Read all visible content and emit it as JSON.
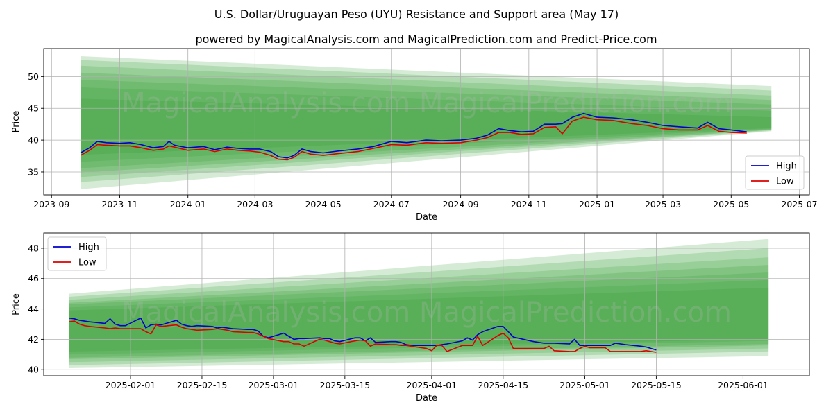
{
  "header": {
    "title": "U.S. Dollar/Uruguayan Peso (UYU) Resistance and Support area (May 17)",
    "subtitle": "powered by MagicalAnalysis.com and MagicalPrediction.com and Predict-Price.com"
  },
  "watermark": "MagicalAnalysis.com   MagicalPrediction.com",
  "colors": {
    "high": "#0000cc",
    "low": "#dd0000",
    "band": "#2e9a2e",
    "grid": "#b0b0b0"
  },
  "chart_data": [
    {
      "type": "line",
      "xlabel": "Date",
      "ylabel": "Price",
      "xlim": [
        "2023-08-25",
        "2025-07-10"
      ],
      "ylim": [
        31.4,
        54.4
      ],
      "x_ticks": [
        "2023-09",
        "2023-11",
        "2024-01",
        "2024-03",
        "2024-05",
        "2024-07",
        "2024-09",
        "2024-11",
        "2025-01",
        "2025-03",
        "2025-05",
        "2025-07"
      ],
      "x_tick_dates": [
        "2023-09-01",
        "2023-11-01",
        "2024-01-01",
        "2024-03-01",
        "2024-05-01",
        "2024-07-01",
        "2024-09-01",
        "2024-11-01",
        "2025-01-01",
        "2025-03-01",
        "2025-05-01",
        "2025-07-01"
      ],
      "y_ticks": [
        35,
        40,
        45,
        50
      ],
      "grid": true,
      "legend": "lower right",
      "series": [
        {
          "name": "High",
          "color": "#0000cc",
          "x": [
            "2023-09-27",
            "2023-10-05",
            "2023-10-12",
            "2023-10-20",
            "2023-11-01",
            "2023-11-10",
            "2023-11-20",
            "2023-12-01",
            "2023-12-10",
            "2023-12-15",
            "2023-12-20",
            "2024-01-01",
            "2024-01-15",
            "2024-01-25",
            "2024-02-05",
            "2024-02-15",
            "2024-02-25",
            "2024-03-05",
            "2024-03-15",
            "2024-03-22",
            "2024-03-30",
            "2024-04-05",
            "2024-04-12",
            "2024-04-20",
            "2024-05-01",
            "2024-05-15",
            "2024-06-01",
            "2024-06-15",
            "2024-07-01",
            "2024-07-15",
            "2024-08-01",
            "2024-08-15",
            "2024-09-01",
            "2024-09-15",
            "2024-09-25",
            "2024-10-05",
            "2024-10-15",
            "2024-10-25",
            "2024-11-05",
            "2024-11-15",
            "2024-11-25",
            "2024-12-01",
            "2024-12-10",
            "2024-12-20",
            "2025-01-01",
            "2025-01-15",
            "2025-02-01",
            "2025-02-15",
            "2025-03-01",
            "2025-03-15",
            "2025-04-01",
            "2025-04-10",
            "2025-04-20",
            "2025-05-01",
            "2025-05-15"
          ],
          "y": [
            38.0,
            38.8,
            39.8,
            39.6,
            39.5,
            39.6,
            39.3,
            38.8,
            39.0,
            39.8,
            39.2,
            38.8,
            39.0,
            38.5,
            38.9,
            38.7,
            38.6,
            38.6,
            38.2,
            37.4,
            37.2,
            37.6,
            38.6,
            38.2,
            38.0,
            38.3,
            38.6,
            39.0,
            39.8,
            39.6,
            40.0,
            39.9,
            40.0,
            40.3,
            40.8,
            41.8,
            41.5,
            41.3,
            41.4,
            42.5,
            42.5,
            42.6,
            43.6,
            44.2,
            43.6,
            43.5,
            43.2,
            42.8,
            42.3,
            42.1,
            41.9,
            42.8,
            41.8,
            41.6,
            41.3
          ]
        },
        {
          "name": "Low",
          "color": "#dd0000",
          "x": [
            "2023-09-27",
            "2023-10-05",
            "2023-10-12",
            "2023-10-20",
            "2023-11-01",
            "2023-11-10",
            "2023-11-20",
            "2023-12-01",
            "2023-12-10",
            "2023-12-15",
            "2023-12-20",
            "2024-01-01",
            "2024-01-15",
            "2024-01-25",
            "2024-02-05",
            "2024-02-15",
            "2024-02-25",
            "2024-03-05",
            "2024-03-15",
            "2024-03-22",
            "2024-03-30",
            "2024-04-05",
            "2024-04-12",
            "2024-04-20",
            "2024-05-01",
            "2024-05-15",
            "2024-06-01",
            "2024-06-15",
            "2024-07-01",
            "2024-07-15",
            "2024-08-01",
            "2024-08-15",
            "2024-09-01",
            "2024-09-15",
            "2024-09-25",
            "2024-10-05",
            "2024-10-15",
            "2024-10-25",
            "2024-11-05",
            "2024-11-15",
            "2024-11-25",
            "2024-12-01",
            "2024-12-10",
            "2024-12-20",
            "2025-01-01",
            "2025-01-15",
            "2025-02-01",
            "2025-02-15",
            "2025-03-01",
            "2025-03-15",
            "2025-04-01",
            "2025-04-10",
            "2025-04-20",
            "2025-05-01",
            "2025-05-15"
          ],
          "y": [
            37.6,
            38.4,
            39.3,
            39.2,
            39.1,
            39.1,
            38.8,
            38.4,
            38.6,
            39.1,
            38.9,
            38.4,
            38.6,
            38.2,
            38.6,
            38.4,
            38.3,
            38.1,
            37.6,
            37.0,
            36.9,
            37.3,
            38.2,
            37.8,
            37.6,
            37.9,
            38.2,
            38.7,
            39.3,
            39.2,
            39.6,
            39.5,
            39.6,
            40.0,
            40.4,
            41.2,
            41.2,
            40.9,
            41.0,
            42.0,
            42.1,
            41.0,
            43.0,
            43.6,
            43.2,
            43.1,
            42.6,
            42.3,
            41.8,
            41.6,
            41.6,
            42.3,
            41.4,
            41.2,
            41.1
          ]
        }
      ]
    },
    {
      "type": "line",
      "xlabel": "Date",
      "ylabel": "Price",
      "xlim": [
        "2025-01-15",
        "2025-06-14"
      ],
      "ylim": [
        39.6,
        49.0
      ],
      "x_ticks": [
        "2025-02-01",
        "2025-02-15",
        "2025-03-01",
        "2025-03-15",
        "2025-04-01",
        "2025-04-15",
        "2025-05-01",
        "2025-05-15",
        "2025-06-01"
      ],
      "y_ticks": [
        40,
        42,
        44,
        46,
        48
      ],
      "grid": true,
      "legend": "upper left",
      "series": [
        {
          "name": "High",
          "color": "#0000cc",
          "x": [
            "2025-01-20",
            "2025-01-21",
            "2025-01-22",
            "2025-01-23",
            "2025-01-24",
            "2025-01-27",
            "2025-01-28",
            "2025-01-29",
            "2025-01-30",
            "2025-01-31",
            "2025-02-03",
            "2025-02-04",
            "2025-02-05",
            "2025-02-06",
            "2025-02-07",
            "2025-02-10",
            "2025-02-11",
            "2025-02-12",
            "2025-02-13",
            "2025-02-14",
            "2025-02-17",
            "2025-02-18",
            "2025-02-19",
            "2025-02-20",
            "2025-02-21",
            "2025-02-24",
            "2025-02-25",
            "2025-02-26",
            "2025-02-27",
            "2025-02-28",
            "2025-03-03",
            "2025-03-04",
            "2025-03-05",
            "2025-03-06",
            "2025-03-07",
            "2025-03-10",
            "2025-03-11",
            "2025-03-12",
            "2025-03-13",
            "2025-03-14",
            "2025-03-17",
            "2025-03-18",
            "2025-03-19",
            "2025-03-20",
            "2025-03-21",
            "2025-03-24",
            "2025-03-25",
            "2025-03-26",
            "2025-03-27",
            "2025-03-28",
            "2025-03-31",
            "2025-04-01",
            "2025-04-02",
            "2025-04-03",
            "2025-04-04",
            "2025-04-07",
            "2025-04-08",
            "2025-04-09",
            "2025-04-10",
            "2025-04-11",
            "2025-04-14",
            "2025-04-15",
            "2025-04-16",
            "2025-04-17",
            "2025-04-21",
            "2025-04-22",
            "2025-04-23",
            "2025-04-24",
            "2025-04-25",
            "2025-04-28",
            "2025-04-29",
            "2025-04-30",
            "2025-05-01",
            "2025-05-02",
            "2025-05-05",
            "2025-05-06",
            "2025-05-07",
            "2025-05-08",
            "2025-05-09",
            "2025-05-12",
            "2025-05-13",
            "2025-05-14",
            "2025-05-15"
          ],
          "y": [
            43.4,
            43.35,
            43.25,
            43.2,
            43.15,
            43.05,
            43.35,
            43.0,
            42.9,
            42.9,
            43.4,
            42.75,
            42.95,
            43.0,
            42.95,
            43.25,
            43.0,
            42.9,
            42.85,
            42.9,
            42.85,
            42.75,
            42.8,
            42.75,
            42.7,
            42.65,
            42.65,
            42.55,
            42.2,
            42.1,
            42.4,
            42.2,
            42.0,
            42.05,
            42.05,
            42.1,
            42.05,
            42.05,
            41.9,
            41.85,
            42.1,
            42.1,
            41.9,
            42.1,
            41.8,
            41.85,
            41.85,
            41.8,
            41.65,
            41.6,
            41.6,
            41.6,
            41.6,
            41.65,
            41.7,
            41.9,
            42.1,
            41.95,
            42.3,
            42.5,
            42.85,
            42.85,
            42.5,
            42.15,
            41.85,
            41.8,
            41.75,
            41.75,
            41.75,
            41.7,
            42.0,
            41.6,
            41.6,
            41.6,
            41.6,
            41.6,
            41.75,
            41.7,
            41.65,
            41.55,
            41.5,
            41.4,
            41.3
          ]
        },
        {
          "name": "Low",
          "color": "#dd0000",
          "x": [
            "2025-01-20",
            "2025-01-21",
            "2025-01-22",
            "2025-01-23",
            "2025-01-24",
            "2025-01-27",
            "2025-01-28",
            "2025-01-29",
            "2025-01-30",
            "2025-01-31",
            "2025-02-03",
            "2025-02-04",
            "2025-02-05",
            "2025-02-06",
            "2025-02-07",
            "2025-02-10",
            "2025-02-11",
            "2025-02-12",
            "2025-02-13",
            "2025-02-14",
            "2025-02-17",
            "2025-02-18",
            "2025-02-19",
            "2025-02-20",
            "2025-02-21",
            "2025-02-24",
            "2025-02-25",
            "2025-02-26",
            "2025-02-27",
            "2025-02-28",
            "2025-03-03",
            "2025-03-04",
            "2025-03-05",
            "2025-03-06",
            "2025-03-07",
            "2025-03-10",
            "2025-03-11",
            "2025-03-12",
            "2025-03-13",
            "2025-03-14",
            "2025-03-17",
            "2025-03-18",
            "2025-03-19",
            "2025-03-20",
            "2025-03-21",
            "2025-03-24",
            "2025-03-25",
            "2025-03-26",
            "2025-03-27",
            "2025-03-28",
            "2025-03-31",
            "2025-04-01",
            "2025-04-02",
            "2025-04-03",
            "2025-04-04",
            "2025-04-07",
            "2025-04-08",
            "2025-04-09",
            "2025-04-10",
            "2025-04-11",
            "2025-04-14",
            "2025-04-15",
            "2025-04-16",
            "2025-04-17",
            "2025-04-21",
            "2025-04-22",
            "2025-04-23",
            "2025-04-24",
            "2025-04-25",
            "2025-04-28",
            "2025-04-29",
            "2025-04-30",
            "2025-05-01",
            "2025-05-02",
            "2025-05-05",
            "2025-05-06",
            "2025-05-07",
            "2025-05-08",
            "2025-05-09",
            "2025-05-12",
            "2025-05-13",
            "2025-05-14",
            "2025-05-15"
          ],
          "y": [
            43.15,
            43.2,
            43.0,
            42.9,
            42.85,
            42.75,
            42.7,
            42.75,
            42.7,
            42.7,
            42.7,
            42.5,
            42.35,
            42.95,
            42.85,
            42.95,
            42.8,
            42.7,
            42.65,
            42.6,
            42.65,
            42.7,
            42.65,
            42.6,
            42.5,
            42.45,
            42.45,
            42.35,
            42.2,
            42.05,
            41.85,
            41.85,
            41.7,
            41.7,
            41.55,
            42.0,
            41.95,
            41.85,
            41.75,
            41.7,
            41.9,
            41.95,
            41.9,
            41.55,
            41.7,
            41.65,
            41.65,
            41.6,
            41.6,
            41.55,
            41.4,
            41.25,
            41.6,
            41.6,
            41.2,
            41.6,
            41.6,
            41.6,
            42.2,
            41.6,
            42.25,
            42.4,
            42.1,
            41.4,
            41.4,
            41.4,
            41.4,
            41.55,
            41.25,
            41.2,
            41.2,
            41.4,
            41.55,
            41.45,
            41.45,
            41.2,
            41.2,
            41.2,
            41.2,
            41.2,
            41.25,
            41.2,
            41.15
          ]
        }
      ]
    }
  ],
  "bands": [
    {
      "start": "2023-09-27",
      "end": "2025-06-06",
      "layers": [
        [
          53.2,
          32.3,
          48.5,
          41.4
        ],
        [
          52.6,
          33.4,
          47.8,
          41.5
        ],
        [
          51.7,
          34.2,
          47.0,
          41.6
        ],
        [
          50.6,
          34.9,
          46.3,
          41.6
        ],
        [
          49.5,
          35.6,
          45.6,
          41.7
        ],
        [
          48.3,
          36.6,
          44.6,
          41.8
        ],
        [
          46.5,
          37.7,
          43.6,
          41.9
        ]
      ]
    },
    {
      "start": "2025-01-20",
      "end": "2025-06-06",
      "layers": [
        [
          45.0,
          40.1,
          48.6,
          40.9
        ],
        [
          44.8,
          40.3,
          48.0,
          41.2
        ],
        [
          44.6,
          40.5,
          47.4,
          41.4
        ],
        [
          44.4,
          40.7,
          46.9,
          41.6
        ],
        [
          44.3,
          40.8,
          46.4,
          41.7
        ],
        [
          44.1,
          41.0,
          45.9,
          41.9
        ],
        [
          43.9,
          41.2,
          45.4,
          42.0
        ]
      ]
    }
  ]
}
